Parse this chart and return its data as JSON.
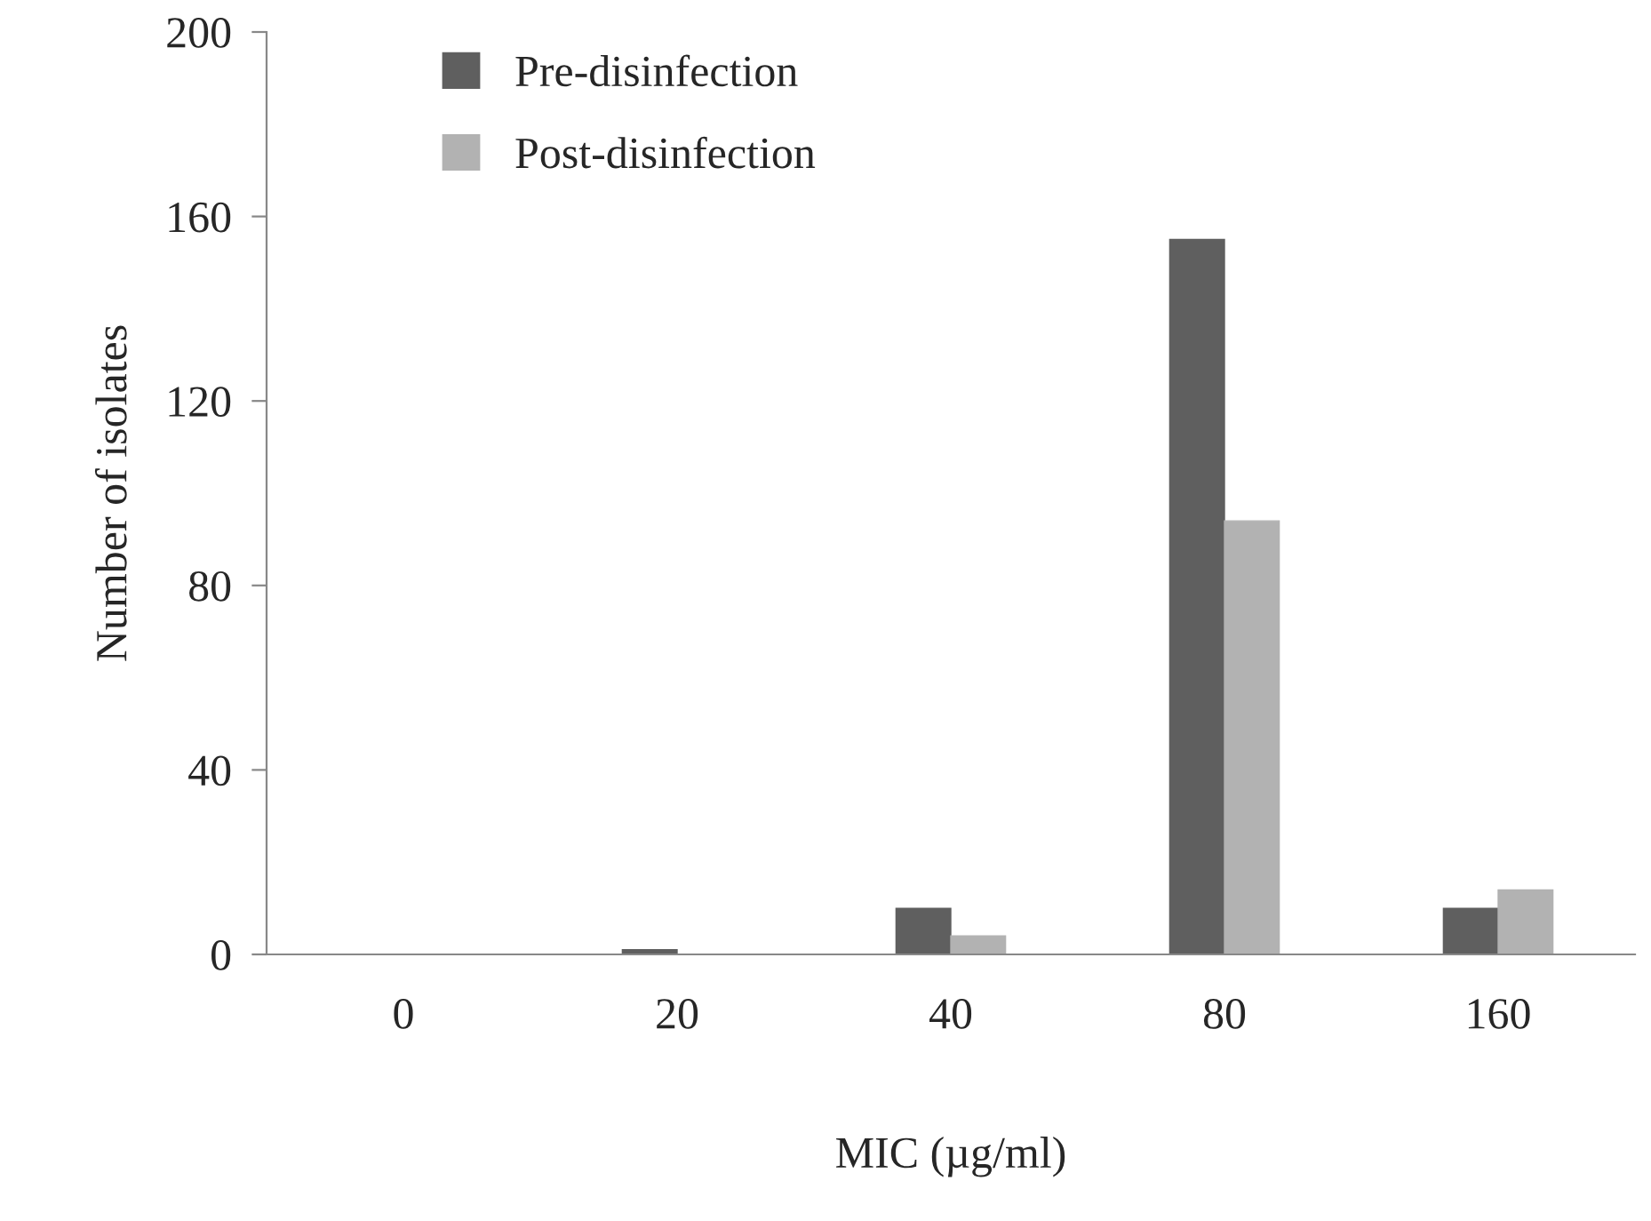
{
  "chart_data": {
    "type": "bar",
    "xlabel": "MIC (µg/ml)",
    "ylabel": "Number of isolates",
    "categories": [
      "0",
      "20",
      "40",
      "80",
      "160"
    ],
    "series": [
      {
        "name": "Pre-disinfection",
        "color": "#5f5f5f",
        "values": [
          0,
          1,
          10,
          155,
          10
        ]
      },
      {
        "name": "Post-disinfection",
        "color": "#b2b2b2",
        "values": [
          0,
          0,
          4,
          94,
          14
        ]
      }
    ],
    "ylim": [
      0,
      200
    ],
    "yticks": [
      0,
      40,
      80,
      120,
      160,
      200
    ],
    "grid": false,
    "legend": "top left"
  }
}
